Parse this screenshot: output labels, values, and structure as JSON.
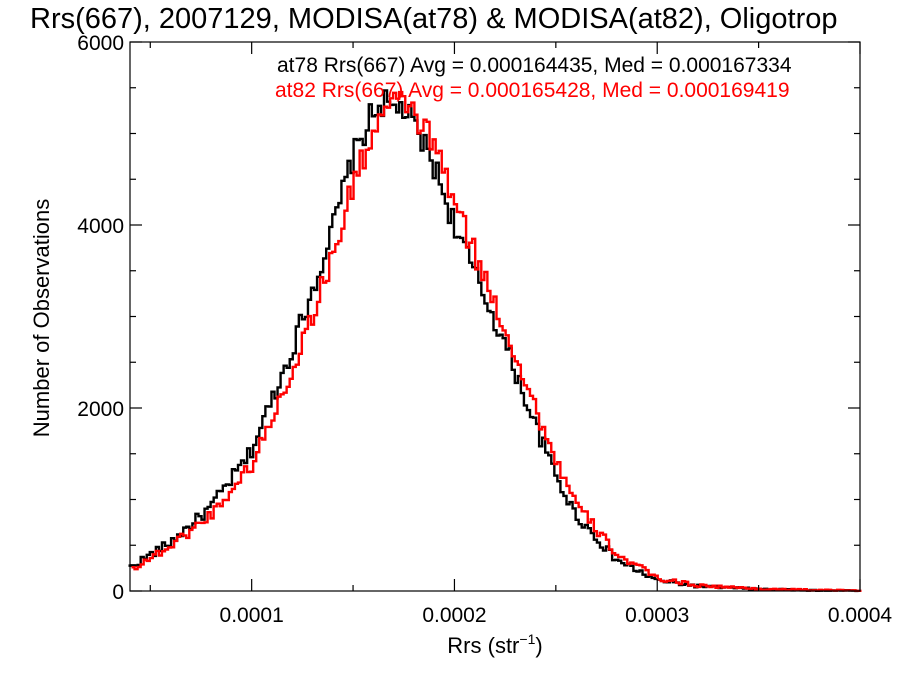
{
  "chart_data": {
    "type": "histogram-step",
    "title": "Rrs(667), 2007129, MODISA(at78) & MODISA(at82), Oligotrop",
    "xlabel": {
      "main": "Rrs (str",
      "sup": "−1",
      "tail": ")"
    },
    "ylabel": "Number of Observations",
    "xlim": [
      4e-05,
      0.0004
    ],
    "ylim": [
      0,
      6000
    ],
    "x_ticks": [
      {
        "value": 0.0001,
        "label": "0.0001"
      },
      {
        "value": 0.0002,
        "label": "0.0002"
      },
      {
        "value": 0.0003,
        "label": "0.0003"
      },
      {
        "value": 0.0004,
        "label": "0.0004"
      }
    ],
    "y_ticks": [
      {
        "value": 0,
        "label": "0"
      },
      {
        "value": 2000,
        "label": "2000"
      },
      {
        "value": 4000,
        "label": "4000"
      },
      {
        "value": 6000,
        "label": "6000"
      }
    ],
    "legend_placement": "top-right",
    "grid": false,
    "series": [
      {
        "name": "at78",
        "color": "#000000",
        "legend": "at78 Rrs(667) Avg = 0.000164435, Med = 0.000167334",
        "x": [
          4e-05,
          6e-05,
          8e-05,
          0.0001,
          0.00012,
          0.00014,
          0.00015,
          0.00016,
          0.000165,
          0.00017,
          0.000175,
          0.00018,
          0.00019,
          0.0002,
          0.00021,
          0.00022,
          0.00023,
          0.00024,
          0.00025,
          0.00026,
          0.00028,
          0.0003,
          0.00032,
          0.00035,
          0.00038,
          0.0004
        ],
        "y": [
          250,
          520,
          900,
          1500,
          2600,
          3900,
          4700,
          5200,
          5350,
          5250,
          5300,
          5100,
          4700,
          4050,
          3500,
          3000,
          2450,
          1850,
          1300,
          850,
          350,
          120,
          55,
          20,
          8,
          5
        ]
      },
      {
        "name": "at82",
        "color": "#ff0000",
        "legend": "at82 Rrs(667) Avg = 0.000165428, Med = 0.000169419",
        "x": [
          4e-05,
          6e-05,
          8e-05,
          0.0001,
          0.00012,
          0.00014,
          0.00015,
          0.00016,
          0.000165,
          0.00017,
          0.000175,
          0.00018,
          0.00019,
          0.0002,
          0.00021,
          0.00022,
          0.00023,
          0.00024,
          0.00025,
          0.00026,
          0.00028,
          0.0003,
          0.00032,
          0.00035,
          0.00038,
          0.0004
        ],
        "y": [
          240,
          500,
          850,
          1400,
          2450,
          3700,
          4500,
          5050,
          5250,
          5300,
          5350,
          5200,
          4850,
          4200,
          3650,
          3100,
          2550,
          1950,
          1400,
          920,
          390,
          135,
          60,
          22,
          9,
          5
        ]
      }
    ]
  }
}
